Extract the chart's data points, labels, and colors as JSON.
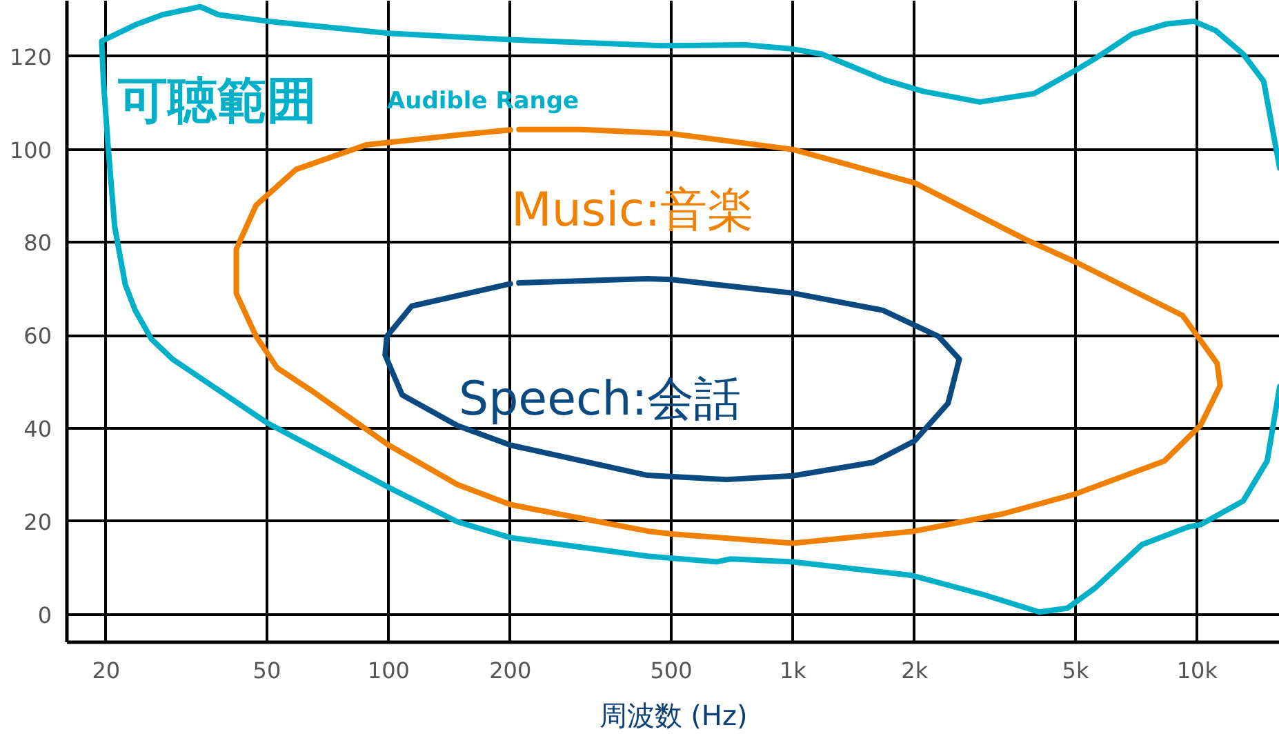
{
  "chart_data": {
    "type": "line",
    "xlabel": "周波数 (Hz)",
    "log": "x",
    "grid": true,
    "xlim": [
      16,
      16000
    ],
    "ylim": [
      -6,
      132
    ],
    "xticks": [
      20,
      50,
      100,
      200,
      500,
      {
        "value": 1000,
        "label": "1k"
      },
      {
        "value": 2000,
        "label": "2k"
      },
      {
        "value": 5000,
        "label": "5k"
      },
      {
        "value": 10000,
        "label": "10k"
      }
    ],
    "yticks": [
      0,
      20,
      40,
      60,
      80,
      100,
      120
    ],
    "annotations": [
      "Audible Range"
    ],
    "series": [
      {
        "name": "可聴範囲",
        "color": "#00b0c8",
        "x": [
          16000,
          14600,
          13000,
          11100,
          9800,
          8400,
          6900,
          5700,
          5000,
          3950,
          2900,
          2100,
          1680,
          1180,
          1000,
          760,
          473,
          200,
          100,
          50,
          37.9,
          34.2,
          27.6,
          23.6,
          19.5,
          19.7,
          20.2,
          21,
          22.3,
          23.6,
          25.9,
          29.2,
          50,
          100,
          148,
          200,
          437,
          649,
          700,
          1000,
          1960,
          2970,
          4070,
          4770,
          5580,
          7300,
          9500,
          10200,
          13000,
          14900,
          16000
        ],
        "values": [
          96,
          114.7,
          120.5,
          125.6,
          127.6,
          127,
          124.8,
          120,
          117,
          112,
          110.2,
          112.5,
          115,
          120.5,
          121.6,
          122.5,
          122.3,
          123.6,
          125,
          127.6,
          129,
          130.7,
          129,
          126.8,
          123.3,
          114.7,
          101.4,
          83.4,
          71,
          65.4,
          59.2,
          54.9,
          41.2,
          27.3,
          19.9,
          16.5,
          12.5,
          11.3,
          11.9,
          11.3,
          8.4,
          4.2,
          0.5,
          1.3,
          5.6,
          15,
          18.8,
          19.3,
          24.4,
          33,
          49
        ]
      },
      {
        "name": "Music:音楽",
        "color": "#f08000",
        "x": [
          200,
          148,
          88,
          59,
          47,
          42,
          42,
          47,
          53,
          64,
          88,
          100,
          148,
          200,
          437,
          500,
          1000,
          2000,
          3300,
          5000,
          8300,
          10200,
          11400,
          11200,
          9200,
          5000,
          3770,
          2000,
          1000,
          500,
          300,
          210
        ],
        "values": [
          104.2,
          103.1,
          101,
          95.7,
          88,
          78.6,
          69,
          59.8,
          53,
          48.3,
          39.8,
          36.4,
          27.9,
          23.6,
          17.9,
          17.3,
          15.3,
          17.9,
          21.6,
          25.9,
          33,
          40.7,
          49.2,
          54,
          64.3,
          75.8,
          80.6,
          92.8,
          100,
          103.4,
          104.3,
          104.3
        ]
      },
      {
        "name": "Speech:会話",
        "color": "#0a4a80",
        "x": [
          200,
          114,
          99,
          98,
          108,
          148,
          200,
          437,
          686,
          1000,
          1580,
          2000,
          2420,
          2580,
          2290,
          1670,
          1000,
          500,
          437,
          210
        ],
        "values": [
          71.1,
          66.3,
          59.8,
          55.8,
          47.2,
          40.6,
          36.4,
          29.9,
          29,
          29.8,
          32.7,
          37.3,
          45.4,
          54.9,
          59.8,
          65.4,
          69.1,
          72,
          72.2,
          71.3
        ]
      }
    ]
  }
}
